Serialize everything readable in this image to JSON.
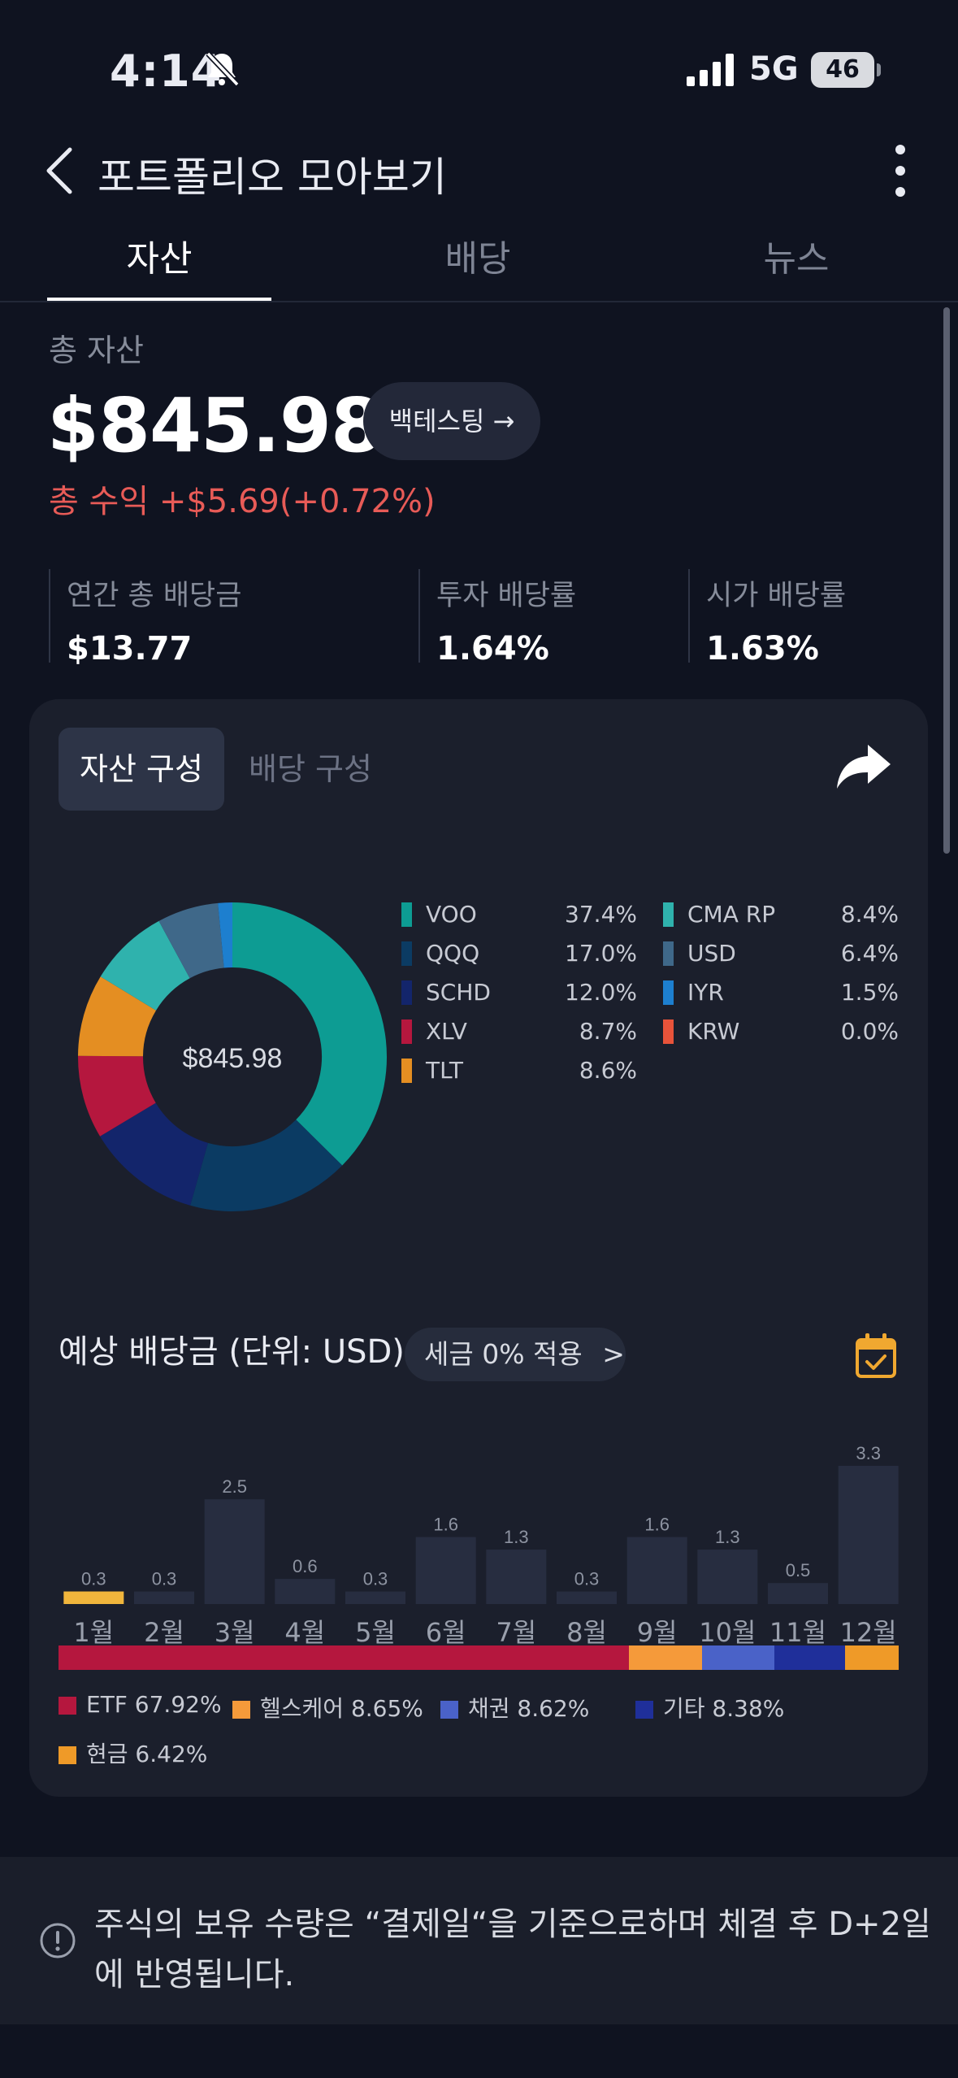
{
  "status": {
    "time": "4:14",
    "network": "5G",
    "battery": "46"
  },
  "nav": {
    "title": "포트폴리오 모아보기"
  },
  "tabs": [
    "자산",
    "배당",
    "뉴스"
  ],
  "summary": {
    "label": "총 자산",
    "total": "$845.98",
    "backtest_label": "백테스팅 →",
    "profit": "총 수익 +$5.69(+0.72%)"
  },
  "stats": [
    {
      "label": "연간 총 배당금",
      "value": "$13.77"
    },
    {
      "label": "투자 배당률",
      "value": "1.64%"
    },
    {
      "label": "시가 배당률",
      "value": "1.63%"
    }
  ],
  "segments": {
    "asset": "자산 구성",
    "dividend": "배당 구성"
  },
  "donut_center": "$845.98",
  "holdings": [
    {
      "name": "VOO",
      "pct": "37.4%",
      "color": "#0d9c93"
    },
    {
      "name": "QQQ",
      "pct": "17.0%",
      "color": "#0b3b63"
    },
    {
      "name": "SCHD",
      "pct": "12.0%",
      "color": "#13256b"
    },
    {
      "name": "XLV",
      "pct": "8.7%",
      "color": "#b5173e"
    },
    {
      "name": "TLT",
      "pct": "8.6%",
      "color": "#e48e22"
    },
    {
      "name": "CMA RP",
      "pct": "8.4%",
      "color": "#2fb2ad"
    },
    {
      "name": "USD",
      "pct": "6.4%",
      "color": "#3f6889"
    },
    {
      "name": "IYR",
      "pct": "1.5%",
      "color": "#1d7fcf"
    },
    {
      "name": "KRW",
      "pct": "0.0%",
      "color": "#e8533a"
    }
  ],
  "dividends": {
    "header": "예상 배당금 (단위: USD)",
    "tax_label": "세금 0% 적용",
    "tax_chevron": ">"
  },
  "chart_data": {
    "type": "bar",
    "categories": [
      "1월",
      "2월",
      "3월",
      "4월",
      "5월",
      "6월",
      "7월",
      "8월",
      "9월",
      "10월",
      "11월",
      "12월"
    ],
    "values": [
      0.3,
      0.3,
      2.5,
      0.6,
      0.3,
      1.6,
      1.3,
      0.3,
      1.6,
      1.3,
      0.5,
      3.3
    ],
    "highlight_index": 0,
    "bar_color": "#272d40",
    "highlight_color": "#f0b53c"
  },
  "categories_breakdown": [
    {
      "label": "ETF 67.92%",
      "value": 67.92,
      "color": "#b5173e"
    },
    {
      "label": "헬스케어 8.65%",
      "value": 8.65,
      "color": "#f59a3a"
    },
    {
      "label": "채권 8.62%",
      "value": 8.62,
      "color": "#4a62c8"
    },
    {
      "label": "기타 8.38%",
      "value": 8.38,
      "color": "#1f2f9a"
    },
    {
      "label": "현금 6.42%",
      "value": 6.42,
      "color": "#ef9a28"
    }
  ],
  "notice": {
    "text": "주식의 보유 수량은 “결제일“을 기준으로하며 체결 후 D+2일에 반영됩니다."
  }
}
